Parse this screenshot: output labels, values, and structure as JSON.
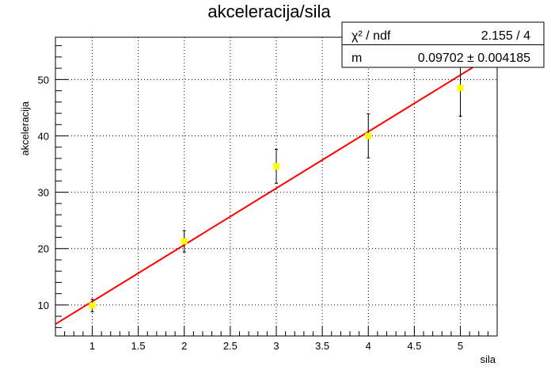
{
  "chart_data": {
    "type": "scatter",
    "title": "akceleracija/sila",
    "xlabel": "sila",
    "ylabel": "akceleracija",
    "xlim": [
      0.6,
      5.4
    ],
    "ylim": [
      4.5,
      57.5
    ],
    "x_ticks_major": [
      1,
      1.5,
      2,
      2.5,
      3,
      3.5,
      4,
      4.5,
      5
    ],
    "x_tick_labels": [
      "1",
      "1.5",
      "2",
      "2.5",
      "3",
      "3.5",
      "4",
      "4.5",
      "5"
    ],
    "y_ticks_major": [
      10,
      20,
      30,
      40,
      50
    ],
    "y_tick_labels": [
      "10",
      "20",
      "30",
      "40",
      "50"
    ],
    "grid": true,
    "marker_color": "#ffff00",
    "fit_color": "#ff0000",
    "points": [
      {
        "x": 1,
        "y": 9.9,
        "err": 1.1
      },
      {
        "x": 2,
        "y": 21.3,
        "err": 1.9
      },
      {
        "x": 3,
        "y": 34.6,
        "err": 3.0
      },
      {
        "x": 4,
        "y": 40.0,
        "err": 3.9
      },
      {
        "x": 5,
        "y": 48.5,
        "err": 5.0
      }
    ],
    "fit": {
      "type": "line",
      "x_range": [
        0.6,
        5.4
      ],
      "y_range": [
        6.6,
        54.8
      ]
    },
    "stats": {
      "rows": [
        {
          "label": "χ² / ndf",
          "value": "2.155 / 4"
        },
        {
          "label": "m",
          "value": "0.09702 ± 0.004185"
        }
      ]
    }
  }
}
